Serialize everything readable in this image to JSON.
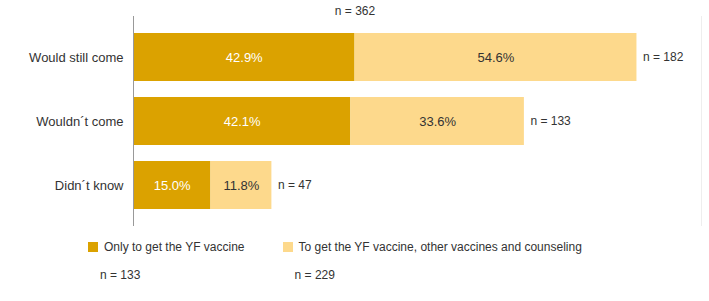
{
  "chart_data": {
    "type": "bar",
    "orientation": "horizontal",
    "stacked": true,
    "data_labels": true,
    "tick_labels": "y",
    "legend": "bottom",
    "categories": [
      "Would still come",
      "Wouldn´t come",
      "Didn´t know"
    ],
    "series": [
      {
        "name": "Only to get the YF vaccine",
        "color": "#DBA200",
        "values": [
          42.9,
          42.1,
          15.0
        ],
        "value_labels": [
          "42.9%",
          "42.1%",
          "15.0%"
        ],
        "n_label": "n = 133"
      },
      {
        "name": "To get the YF vaccine, other vaccines and counseling",
        "color": "#FDD98C",
        "values": [
          54.6,
          33.6,
          11.8
        ],
        "value_labels": [
          "54.6%",
          "33.6%",
          "11.8%"
        ],
        "n_label": "n = 229"
      }
    ],
    "annotations": {
      "total_label": "n = 362",
      "category_n_labels": [
        "n = 182",
        "n = 133",
        "n = 47"
      ]
    },
    "xlim": [
      0,
      110
    ]
  }
}
